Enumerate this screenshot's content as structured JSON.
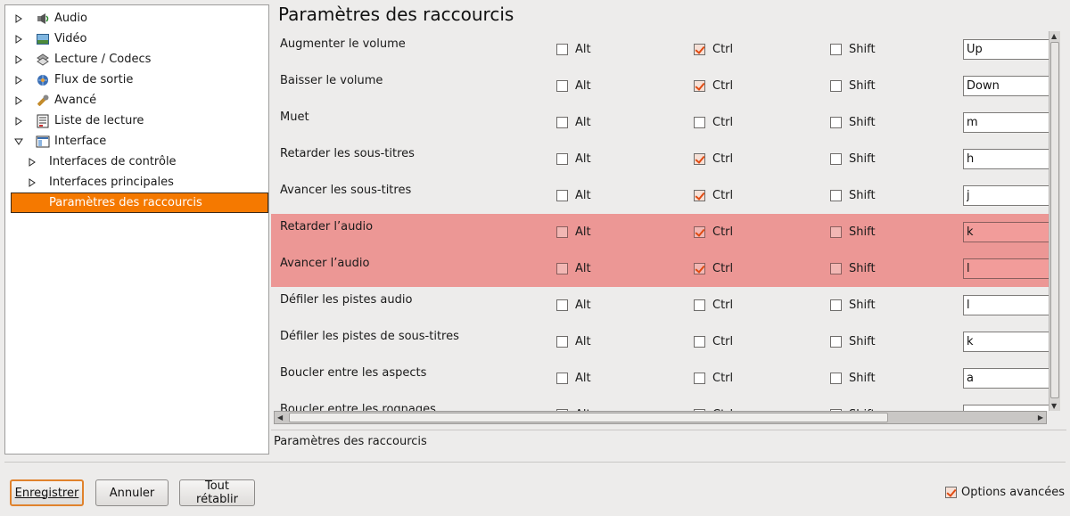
{
  "tree": {
    "items": [
      {
        "label": "Audio",
        "icon": "audio-icon",
        "expanded": false,
        "level": 0
      },
      {
        "label": "Vidéo",
        "icon": "video-icon",
        "expanded": false,
        "level": 0
      },
      {
        "label": "Lecture / Codecs",
        "icon": "codecs-icon",
        "expanded": false,
        "level": 0
      },
      {
        "label": "Flux de sortie",
        "icon": "stream-output-icon",
        "expanded": false,
        "level": 0
      },
      {
        "label": "Avancé",
        "icon": "wrench-icon",
        "expanded": false,
        "level": 0
      },
      {
        "label": "Liste de lecture",
        "icon": "playlist-icon",
        "expanded": false,
        "level": 0
      },
      {
        "label": "Interface",
        "icon": "interface-icon",
        "expanded": true,
        "level": 0
      },
      {
        "label": "Interfaces de contrôle",
        "expanded": false,
        "level": 1
      },
      {
        "label": "Interfaces principales",
        "expanded": false,
        "level": 1
      },
      {
        "label": "Paramètres des raccourcis",
        "selected": true,
        "level": 1
      }
    ]
  },
  "page_title": "Paramètres des raccourcis",
  "modifier_labels": {
    "alt": "Alt",
    "ctrl": "Ctrl",
    "shift": "Shift"
  },
  "hotkeys": [
    {
      "label": "Augmenter le volume",
      "alt": false,
      "ctrl": true,
      "shift": false,
      "key": "Up"
    },
    {
      "label": "Baisser le volume",
      "alt": false,
      "ctrl": true,
      "shift": false,
      "key": "Down"
    },
    {
      "label": "Muet",
      "alt": false,
      "ctrl": false,
      "shift": false,
      "key": "m"
    },
    {
      "label": "Retarder les sous-titres",
      "alt": false,
      "ctrl": true,
      "shift": false,
      "key": "h"
    },
    {
      "label": "Avancer les sous-titres",
      "alt": false,
      "ctrl": true,
      "shift": false,
      "key": "j"
    },
    {
      "label": "Retarder l’audio",
      "alt": false,
      "ctrl": true,
      "shift": false,
      "key": "k",
      "highlighted": true
    },
    {
      "label": "Avancer l’audio",
      "alt": false,
      "ctrl": true,
      "shift": false,
      "key": "l",
      "highlighted": true
    },
    {
      "label": "Défiler les pistes audio",
      "alt": false,
      "ctrl": false,
      "shift": false,
      "key": "l"
    },
    {
      "label": "Défiler les pistes de sous-titres",
      "alt": false,
      "ctrl": false,
      "shift": false,
      "key": "k"
    },
    {
      "label": "Boucler entre les aspects",
      "alt": false,
      "ctrl": false,
      "shift": false,
      "key": "a"
    },
    {
      "label": "Boucler entre les rognages",
      "alt": false,
      "ctrl": false,
      "shift": false,
      "key": ""
    }
  ],
  "status_text": "Paramètres des raccourcis",
  "buttons": {
    "save": "Enregistrer",
    "cancel": "Annuler",
    "reset": "Tout rétablir"
  },
  "advanced_options": {
    "label": "Options avancées",
    "checked": true
  },
  "colors": {
    "selection": "#f57900",
    "highlight_row": "#ec9795",
    "check_mark": "#e04b12"
  }
}
